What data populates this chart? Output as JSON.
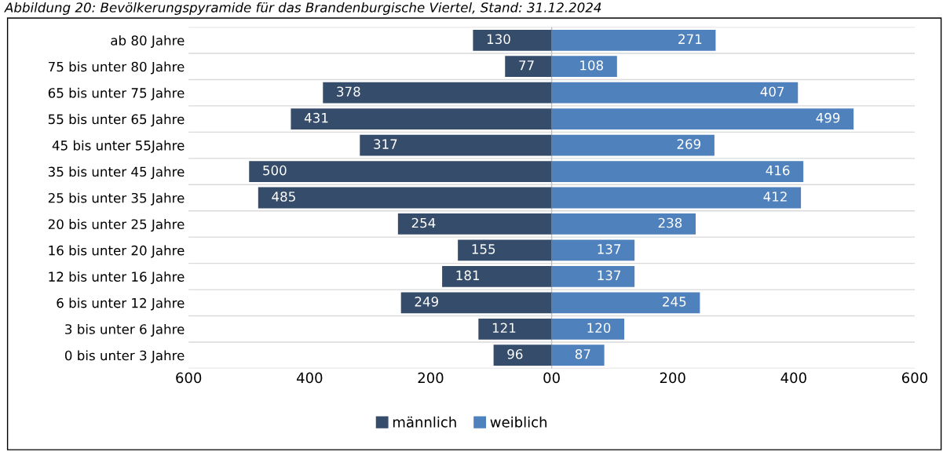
{
  "chart_data": {
    "type": "bar",
    "orientation": "horizontal",
    "title": "Abbildung 20: Bevölkerungspyramide für das Brandenburgische Viertel, Stand: 31.12.2024",
    "categories": [
      "ab 80 Jahre",
      "75 bis unter 80 Jahre",
      "65 bis unter 75 Jahre",
      "55 bis unter 65 Jahre",
      "45 bis unter 55Jahre",
      "35 bis unter 45 Jahre",
      "25 bis unter 35 Jahre",
      "20 bis unter 25 Jahre",
      "16 bis unter 20 Jahre",
      "12 bis unter 16 Jahre",
      "6 bis unter 12 Jahre",
      "3 bis unter 6 Jahre",
      "0 bis unter 3 Jahre"
    ],
    "series": [
      {
        "name": "männlich",
        "color": "#364c6b",
        "values": [
          130,
          77,
          378,
          431,
          317,
          500,
          485,
          254,
          155,
          181,
          249,
          121,
          96
        ],
        "base": [
          -130,
          -77,
          -378,
          -431,
          -317,
          -500,
          -485,
          -254,
          -155,
          -181,
          -249,
          -121,
          -96
        ]
      },
      {
        "name": "weiblich",
        "color": "#4f81bd",
        "values": [
          271,
          108,
          407,
          499,
          269,
          416,
          412,
          238,
          137,
          137,
          245,
          120,
          87
        ]
      }
    ],
    "data_labels": true,
    "xlim": [
      -600,
      600
    ],
    "xticks": [
      {
        "value": -600,
        "label": "600"
      },
      {
        "value": -400,
        "label": "400"
      },
      {
        "value": -200,
        "label": "200"
      },
      {
        "value": 0,
        "label": "00"
      },
      200,
      400,
      600
    ],
    "grid": "y",
    "legend": "bottom"
  }
}
